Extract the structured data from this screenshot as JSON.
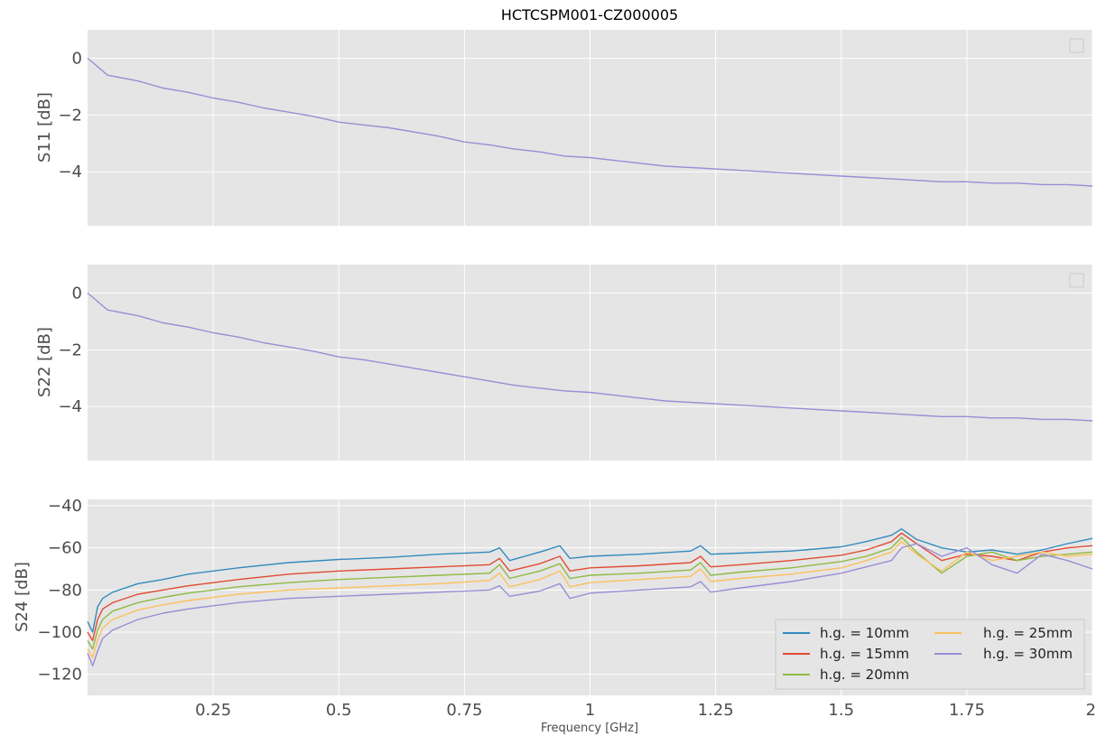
{
  "chart_data": {
    "title": "HCTCSPM001-CZ000005",
    "xlabel": "Frequency [GHz]",
    "xlim": [
      0,
      2
    ],
    "x_ticks": [
      "0.25",
      "0.5",
      "0.75",
      "1",
      "1.25",
      "1.5",
      "1.75",
      "2"
    ],
    "grid": true,
    "panels": [
      {
        "type": "line",
        "ylabel": "S11 [dB]",
        "ylim": [
          -5.9,
          1.0
        ],
        "y_ticks": [
          "0",
          "−2",
          "−4"
        ],
        "legend": "top-right (empty)",
        "series": [
          {
            "color": "#988ED5",
            "x": [
              0,
              0.02,
              0.04,
              0.1,
              0.15,
              0.2,
              0.25,
              0.3,
              0.35,
              0.4,
              0.45,
              0.5,
              0.55,
              0.6,
              0.65,
              0.7,
              0.75,
              0.8,
              0.85,
              0.9,
              0.95,
              1.0,
              1.05,
              1.1,
              1.15,
              1.2,
              1.25,
              1.3,
              1.35,
              1.4,
              1.45,
              1.5,
              1.55,
              1.6,
              1.65,
              1.7,
              1.75,
              1.8,
              1.85,
              1.9,
              1.95,
              2.0
            ],
            "values": [
              0.0,
              -0.3,
              -0.6,
              -0.8,
              -1.05,
              -1.2,
              -1.4,
              -1.55,
              -1.75,
              -1.9,
              -2.05,
              -2.25,
              -2.35,
              -2.45,
              -2.6,
              -2.75,
              -2.95,
              -3.05,
              -3.2,
              -3.3,
              -3.45,
              -3.5,
              -3.6,
              -3.7,
              -3.8,
              -3.85,
              -3.9,
              -3.95,
              -4.0,
              -4.05,
              -4.1,
              -4.15,
              -4.2,
              -4.25,
              -4.3,
              -4.35,
              -4.35,
              -4.4,
              -4.4,
              -4.45,
              -4.45,
              -4.5
            ]
          }
        ]
      },
      {
        "type": "line",
        "ylabel": "S22 [dB]",
        "ylim": [
          -5.9,
          1.0
        ],
        "y_ticks": [
          "0",
          "−2",
          "−4"
        ],
        "legend": "top-right (empty)",
        "series": [
          {
            "color": "#988ED5",
            "x": [
              0,
              0.02,
              0.04,
              0.1,
              0.15,
              0.2,
              0.25,
              0.3,
              0.35,
              0.4,
              0.45,
              0.5,
              0.55,
              0.6,
              0.65,
              0.7,
              0.75,
              0.8,
              0.85,
              0.9,
              0.95,
              1.0,
              1.05,
              1.1,
              1.15,
              1.2,
              1.25,
              1.3,
              1.35,
              1.4,
              1.45,
              1.5,
              1.55,
              1.6,
              1.65,
              1.7,
              1.75,
              1.8,
              1.85,
              1.9,
              1.95,
              2.0
            ],
            "values": [
              0.0,
              -0.3,
              -0.6,
              -0.8,
              -1.05,
              -1.2,
              -1.4,
              -1.55,
              -1.75,
              -1.9,
              -2.05,
              -2.25,
              -2.35,
              -2.5,
              -2.65,
              -2.8,
              -2.95,
              -3.1,
              -3.25,
              -3.35,
              -3.45,
              -3.5,
              -3.6,
              -3.7,
              -3.8,
              -3.85,
              -3.9,
              -3.95,
              -4.0,
              -4.05,
              -4.1,
              -4.15,
              -4.2,
              -4.25,
              -4.3,
              -4.35,
              -4.35,
              -4.4,
              -4.4,
              -4.45,
              -4.45,
              -4.5
            ]
          }
        ]
      },
      {
        "type": "line",
        "ylabel": "S24 [dB]",
        "ylim": [
          -130,
          -37
        ],
        "y_ticks": [
          "−40",
          "−60",
          "−80",
          "−100",
          "−120"
        ],
        "legend": "lower-right",
        "series": [
          {
            "name": "h.g. = 10mm",
            "color": "#348ABD",
            "x": [
              0,
              0.01,
              0.02,
              0.03,
              0.05,
              0.1,
              0.15,
              0.2,
              0.25,
              0.3,
              0.4,
              0.5,
              0.6,
              0.7,
              0.8,
              0.82,
              0.84,
              0.9,
              0.94,
              0.96,
              1.0,
              1.1,
              1.2,
              1.22,
              1.24,
              1.3,
              1.4,
              1.5,
              1.55,
              1.6,
              1.62,
              1.65,
              1.7,
              1.75,
              1.8,
              1.85,
              1.9,
              1.95,
              2.0
            ],
            "values": [
              -95,
              -100,
              -88,
              -84,
              -81,
              -77,
              -75,
              -72.5,
              -71,
              -69.5,
              -67,
              -65.5,
              -64.5,
              -63,
              -62,
              -60,
              -66,
              -62,
              -59,
              -65,
              -64,
              -63,
              -61.5,
              -59,
              -63,
              -62.5,
              -61.5,
              -59.5,
              -57,
              -54,
              -51,
              -56,
              -60,
              -62,
              -61,
              -63,
              -61,
              -58,
              -55.5
            ]
          },
          {
            "name": "h.g. = 15mm",
            "color": "#E24A33",
            "x": [
              0,
              0.01,
              0.02,
              0.03,
              0.05,
              0.1,
              0.15,
              0.2,
              0.25,
              0.3,
              0.4,
              0.5,
              0.6,
              0.7,
              0.8,
              0.82,
              0.84,
              0.9,
              0.94,
              0.96,
              1.0,
              1.1,
              1.2,
              1.22,
              1.24,
              1.3,
              1.4,
              1.5,
              1.55,
              1.6,
              1.62,
              1.65,
              1.7,
              1.75,
              1.8,
              1.85,
              1.9,
              1.95,
              2.0
            ],
            "values": [
              -100,
              -104,
              -94,
              -89,
              -86,
              -82,
              -80,
              -78,
              -76.5,
              -75,
              -72.5,
              -71,
              -70,
              -69,
              -68,
              -65,
              -71,
              -67.5,
              -64,
              -71,
              -69.5,
              -68.5,
              -67,
              -64,
              -69,
              -68,
              -66,
              -63.5,
              -61,
              -57,
              -53,
              -58,
              -66,
              -63,
              -64,
              -66,
              -62,
              -60,
              -59
            ]
          },
          {
            "name": "h.g. = 20mm",
            "color": "#8EBA42",
            "x": [
              0,
              0.01,
              0.02,
              0.03,
              0.05,
              0.1,
              0.15,
              0.2,
              0.25,
              0.3,
              0.4,
              0.5,
              0.6,
              0.7,
              0.8,
              0.82,
              0.84,
              0.9,
              0.94,
              0.96,
              1.0,
              1.1,
              1.2,
              1.22,
              1.24,
              1.3,
              1.4,
              1.5,
              1.55,
              1.6,
              1.62,
              1.65,
              1.7,
              1.75,
              1.8,
              1.85,
              1.9,
              1.95,
              2.0
            ],
            "values": [
              -104,
              -108,
              -99,
              -94,
              -90,
              -86,
              -83.5,
              -81.5,
              -80,
              -78.5,
              -76.5,
              -75,
              -74,
              -73,
              -72,
              -68,
              -74.5,
              -71,
              -67.5,
              -74.5,
              -73,
              -72,
              -70.5,
              -67,
              -73,
              -71.5,
              -69.5,
              -66.5,
              -64,
              -60,
              -55,
              -62,
              -72,
              -64,
              -62,
              -66,
              -64,
              -63,
              -62
            ]
          },
          {
            "name": "h.g. = 25mm",
            "color": "#FBC15E",
            "x": [
              0,
              0.01,
              0.02,
              0.03,
              0.05,
              0.1,
              0.15,
              0.2,
              0.25,
              0.3,
              0.4,
              0.5,
              0.6,
              0.7,
              0.8,
              0.82,
              0.84,
              0.9,
              0.94,
              0.96,
              1.0,
              1.1,
              1.2,
              1.22,
              1.24,
              1.3,
              1.4,
              1.5,
              1.55,
              1.6,
              1.62,
              1.65,
              1.7,
              1.75,
              1.8,
              1.85,
              1.9,
              1.95,
              2.0
            ],
            "values": [
              -108,
              -112,
              -104,
              -98,
              -94,
              -89.5,
              -87,
              -85,
              -83.5,
              -82,
              -80,
              -79,
              -78,
              -77,
              -75.5,
              -72,
              -78.5,
              -75,
              -71,
              -78.5,
              -76.5,
              -75,
              -73.5,
              -70,
              -76,
              -74.5,
              -72.5,
              -69.5,
              -66,
              -62,
              -57,
              -63,
              -71,
              -62,
              -66,
              -64,
              -62,
              -64,
              -63
            ]
          },
          {
            "name": "h.g. = 30mm",
            "color": "#988ED5",
            "x": [
              0,
              0.01,
              0.02,
              0.03,
              0.05,
              0.1,
              0.15,
              0.2,
              0.25,
              0.3,
              0.4,
              0.5,
              0.6,
              0.7,
              0.8,
              0.82,
              0.84,
              0.9,
              0.94,
              0.96,
              1.0,
              1.1,
              1.2,
              1.22,
              1.24,
              1.3,
              1.4,
              1.5,
              1.55,
              1.6,
              1.62,
              1.65,
              1.7,
              1.75,
              1.8,
              1.85,
              1.9,
              1.95,
              2.0
            ],
            "values": [
              -110,
              -116,
              -109,
              -103,
              -99,
              -94,
              -91,
              -89,
              -87.5,
              -86,
              -84,
              -83,
              -82,
              -81,
              -80,
              -78,
              -83,
              -80.5,
              -77,
              -84,
              -81.5,
              -80,
              -78.5,
              -76,
              -81,
              -79,
              -76,
              -72,
              -69,
              -66,
              -60,
              -58,
              -64,
              -60,
              -68,
              -72,
              -63,
              -66,
              -70
            ]
          }
        ]
      }
    ]
  }
}
